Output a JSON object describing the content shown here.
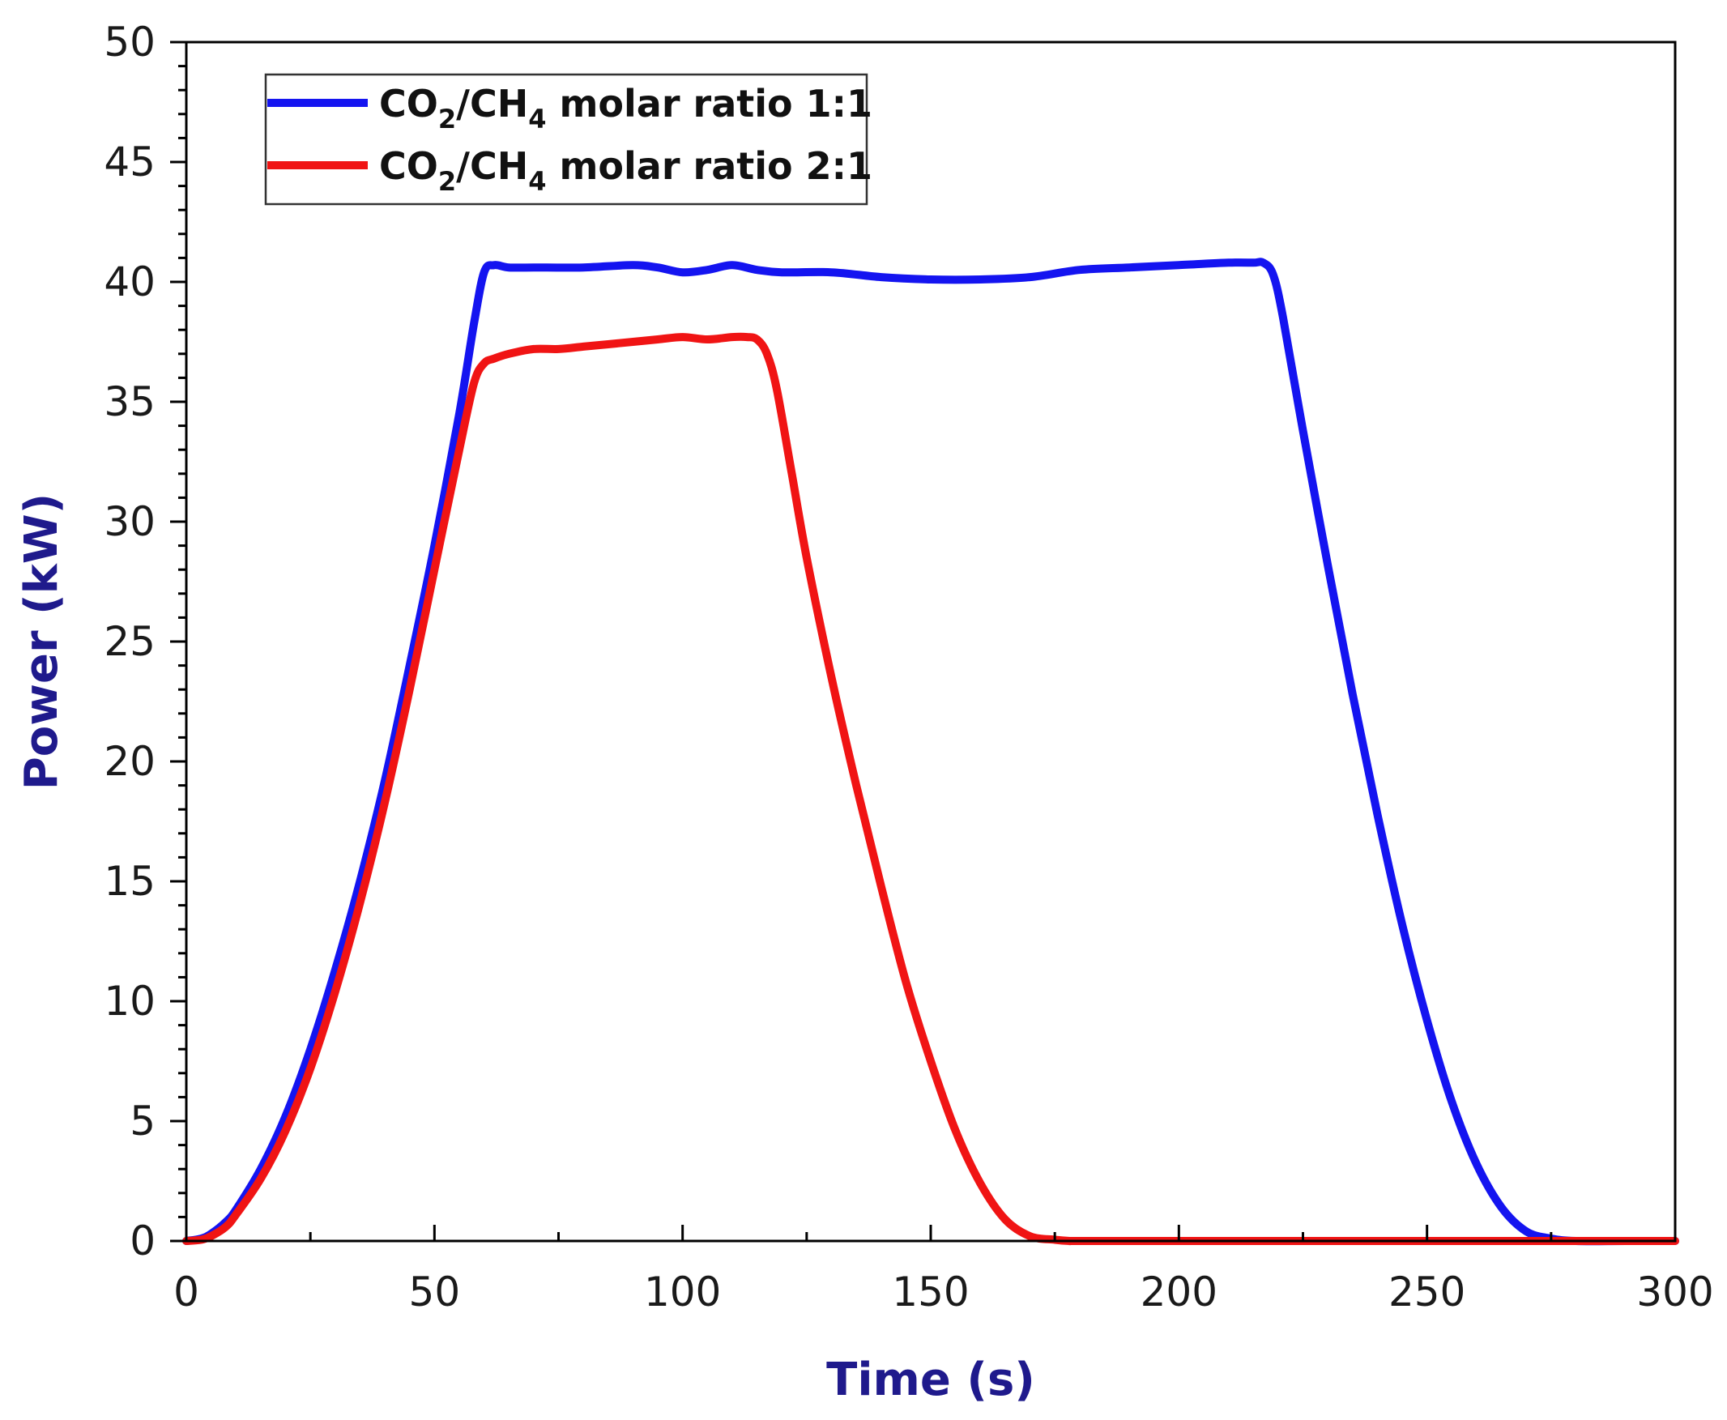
{
  "chart_data": {
    "type": "line",
    "title": "",
    "xlabel": "Time (s)",
    "ylabel": "Power (kW)",
    "axis_title_color": "#1f1a8c",
    "xlim": [
      0,
      300
    ],
    "ylim": [
      0,
      50
    ],
    "xticks": [
      0,
      50,
      100,
      150,
      200,
      250,
      300
    ],
    "yticks": [
      0,
      5,
      10,
      15,
      20,
      25,
      30,
      35,
      40,
      45,
      50
    ],
    "xtick_labels": [
      "0",
      "50",
      "100",
      "150",
      "200",
      "250",
      "300"
    ],
    "ytick_labels": [
      "0",
      "5",
      "10",
      "15",
      "20",
      "25",
      "30",
      "35",
      "40",
      "45",
      "50"
    ],
    "grid": false,
    "legend_position": "top-left",
    "series": [
      {
        "name": "CO2/CH4 molar ratio 1:1",
        "legend": {
          "pre": "CO",
          "sub1": "2",
          "mid": "/CH",
          "sub2": "4",
          "post": " molar ratio 1:1"
        },
        "color": "#1414f0",
        "x": [
          0,
          3,
          5,
          8,
          10,
          15,
          20,
          25,
          30,
          35,
          40,
          45,
          50,
          55,
          58,
          60,
          62,
          65,
          70,
          80,
          90,
          95,
          100,
          105,
          110,
          115,
          120,
          130,
          140,
          150,
          160,
          170,
          180,
          190,
          200,
          210,
          215,
          217,
          219,
          221,
          225,
          230,
          235,
          240,
          245,
          250,
          255,
          260,
          265,
          270,
          275,
          280,
          290,
          300
        ],
        "y": [
          0,
          0.1,
          0.3,
          0.8,
          1.3,
          3.0,
          5.2,
          8.0,
          11.3,
          15.0,
          19.2,
          24.0,
          29.0,
          34.5,
          38.3,
          40.4,
          40.7,
          40.6,
          40.6,
          40.6,
          40.7,
          40.6,
          40.4,
          40.5,
          40.7,
          40.5,
          40.4,
          40.4,
          40.2,
          40.1,
          40.1,
          40.2,
          40.5,
          40.6,
          40.7,
          40.8,
          40.8,
          40.8,
          40.3,
          38.5,
          33.8,
          28.2,
          22.8,
          17.8,
          13.2,
          9.2,
          5.8,
          3.2,
          1.4,
          0.4,
          0.1,
          0,
          0,
          0
        ]
      },
      {
        "name": "CO2/CH4 molar ratio 2:1",
        "legend": {
          "pre": "CO",
          "sub1": "2",
          "mid": "/CH",
          "sub2": "4",
          "post": " molar ratio 2:1"
        },
        "color": "#f01414",
        "x": [
          0,
          3,
          5,
          8,
          10,
          15,
          20,
          25,
          30,
          35,
          40,
          45,
          50,
          55,
          58,
          60,
          62,
          65,
          70,
          75,
          80,
          85,
          90,
          95,
          100,
          105,
          110,
          113,
          115,
          117,
          119,
          122,
          125,
          130,
          135,
          140,
          145,
          150,
          155,
          160,
          165,
          170,
          175,
          178,
          180,
          200,
          250,
          300
        ],
        "y": [
          0,
          0.05,
          0.2,
          0.6,
          1.1,
          2.6,
          4.6,
          7.2,
          10.4,
          14.1,
          18.3,
          23.0,
          28.0,
          33.0,
          35.8,
          36.6,
          36.8,
          37.0,
          37.2,
          37.2,
          37.3,
          37.4,
          37.5,
          37.6,
          37.7,
          37.6,
          37.7,
          37.7,
          37.6,
          37.0,
          35.5,
          32.0,
          28.5,
          23.5,
          19.0,
          14.8,
          10.8,
          7.5,
          4.6,
          2.4,
          0.9,
          0.2,
          0.05,
          0,
          0,
          0,
          0,
          0
        ]
      }
    ]
  }
}
